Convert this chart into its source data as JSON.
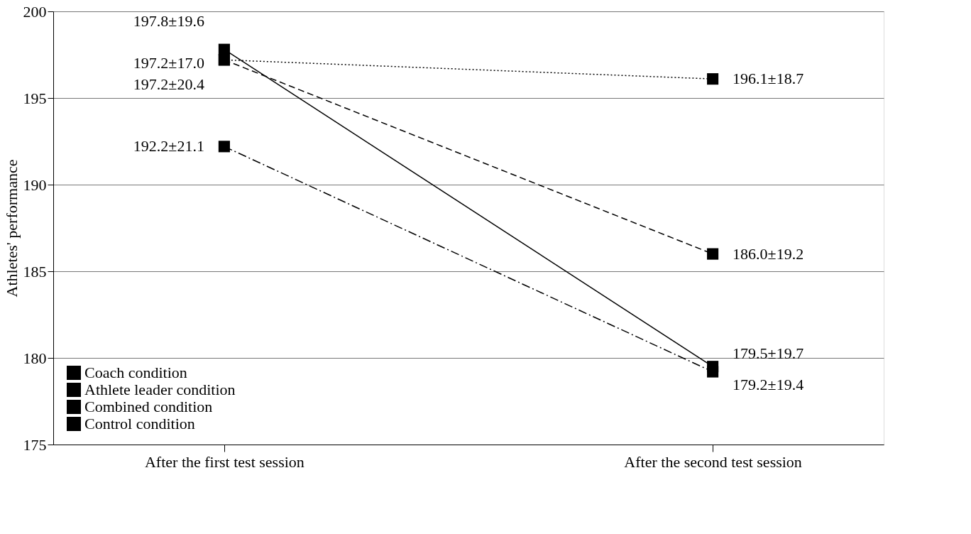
{
  "chart_data": {
    "type": "line",
    "ylabel": "Athletes' performance",
    "categories": [
      "After the first test session",
      "After the second test session"
    ],
    "ylim": [
      175,
      200
    ],
    "yticks": [
      175,
      180,
      185,
      190,
      195,
      200
    ],
    "grid": "y",
    "legend": "bottom left",
    "marker": "square",
    "series": [
      {
        "name": "Coach condition",
        "color": "#000000",
        "line_style": "dashed",
        "values": [
          197.2,
          186.0
        ],
        "value_labels": [
          "197.2±17.0",
          "186.0±19.2"
        ]
      },
      {
        "name": "Athlete leader condition",
        "color": "#000000",
        "line_style": "dashdot",
        "values": [
          192.2,
          179.2
        ],
        "value_labels": [
          "192.2±21.1",
          "179.2±19.4"
        ]
      },
      {
        "name": "Combined condition",
        "color": "#000000",
        "line_style": "solid",
        "values": [
          197.8,
          179.5
        ],
        "value_labels": [
          "197.8±19.6",
          "179.5±19.7"
        ]
      },
      {
        "name": "Control condition",
        "color": "#000000",
        "line_style": "dotted",
        "values": [
          197.2,
          196.1
        ],
        "value_labels": [
          "197.2±20.4",
          "196.1±18.7"
        ]
      }
    ]
  }
}
